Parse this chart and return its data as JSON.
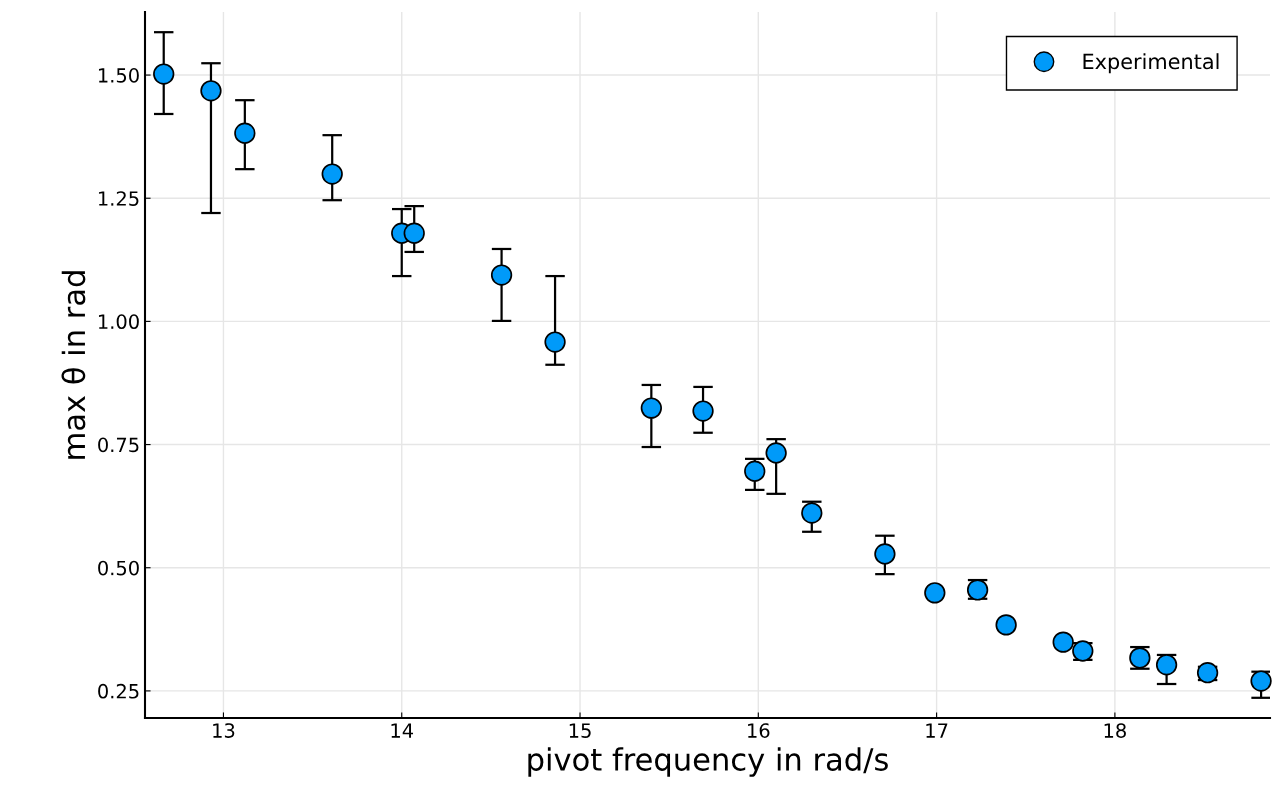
{
  "chart_data": {
    "type": "scatter",
    "xlabel": "pivot frequency in rad/s",
    "ylabel": "max θ in rad",
    "x": [
      12.665,
      12.93,
      13.12,
      13.61,
      14.0,
      14.07,
      14.56,
      14.86,
      15.4,
      15.69,
      15.98,
      16.1,
      16.3,
      16.71,
      16.99,
      17.23,
      17.39,
      17.71,
      17.82,
      18.14,
      18.29,
      18.52,
      18.82
    ],
    "series": [
      {
        "name": "Experimental",
        "color": "#009af9",
        "values": [
          1.502,
          1.468,
          1.382,
          1.299,
          1.179,
          1.179,
          1.094,
          0.958,
          0.824,
          0.818,
          0.696,
          0.733,
          0.611,
          0.528,
          0.449,
          0.455,
          0.384,
          0.349,
          0.331,
          0.317,
          0.303,
          0.287,
          0.27
        ],
        "errors": [
          [
            1.421,
            1.587
          ],
          [
            1.22,
            1.524
          ],
          [
            1.309,
            1.449
          ],
          [
            1.246,
            1.378
          ],
          [
            1.092,
            1.228
          ],
          [
            1.141,
            1.234
          ],
          [
            1.001,
            1.147
          ],
          [
            0.912,
            1.092
          ],
          [
            0.745,
            0.871
          ],
          [
            0.774,
            0.867
          ],
          [
            0.658,
            0.721
          ],
          [
            0.65,
            0.761
          ],
          [
            0.573,
            0.634
          ],
          [
            0.487,
            0.565
          ],
          null,
          [
            0.437,
            0.475
          ],
          null,
          null,
          [
            0.313,
            0.347
          ],
          [
            0.295,
            0.339
          ],
          [
            0.264,
            0.323
          ],
          [
            0.272,
            0.299
          ],
          [
            0.236,
            0.289
          ]
        ]
      }
    ],
    "xlim": [
      12.56,
      18.87
    ],
    "xticks": [
      13,
      14,
      15,
      16,
      17,
      18
    ],
    "ylim": [
      0.195,
      1.628
    ],
    "yticks": [
      {
        "value": 0.25,
        "label": "0.25"
      },
      {
        "value": 0.5,
        "label": "0.50"
      },
      {
        "value": 0.75,
        "label": "0.75"
      },
      {
        "value": 1.0,
        "label": "1.00"
      },
      {
        "value": 1.25,
        "label": "1.25"
      },
      {
        "value": 1.5,
        "label": "1.50"
      }
    ],
    "grid": true,
    "legend": "top right",
    "marker": "circle"
  }
}
